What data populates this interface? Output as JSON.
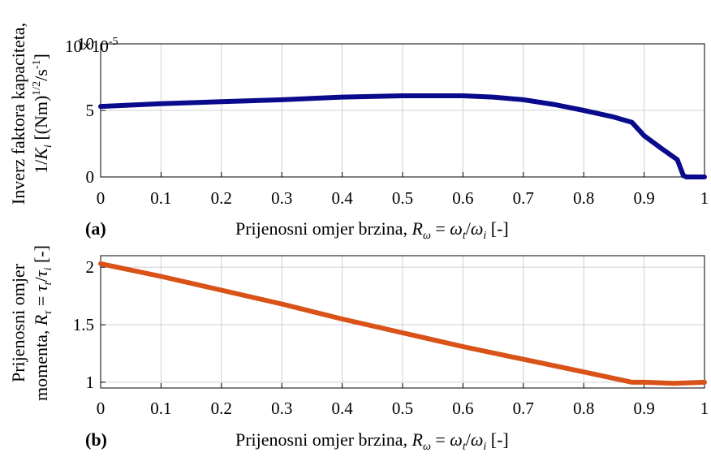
{
  "chart_data": [
    {
      "type": "line",
      "panel_label": "(a)",
      "xlabel_prefix": "Prijenosni omjer brzina, ",
      "xlabel_math": "R",
      "xlabel_sub": "ω",
      "xlabel_eq": " = ",
      "xlabel_num": "ω",
      "xlabel_num_sub": "t",
      "xlabel_slash": "/",
      "xlabel_den": "ω",
      "xlabel_den_sub": "i",
      "xlabel_unit": " [-]",
      "ylabel_line1": "Inverz faktora kapaciteta,",
      "ylabel_line2_a": "1/",
      "ylabel_line2_k": "K",
      "ylabel_line2_ksub": "i",
      "ylabel_line2_b": " [(Nm)",
      "ylabel_line2_sup1": "1/2",
      "ylabel_line2_c": "/s",
      "ylabel_line2_sup2": "-1",
      "ylabel_line2_d": "]",
      "exponent_base": "10",
      "exponent_times": "×",
      "exponent_power": "-5",
      "xlim": [
        0,
        1
      ],
      "ylim": [
        0,
        10
      ],
      "xticks": [
        0,
        0.1,
        0.2,
        0.3,
        0.4,
        0.5,
        0.6,
        0.7,
        0.8,
        0.9,
        1
      ],
      "xtick_labels": [
        "0",
        "0.1",
        "0.2",
        "0.3",
        "0.4",
        "0.5",
        "0.6",
        "0.7",
        "0.8",
        "0.9",
        "1"
      ],
      "yticks": [
        0,
        5,
        10
      ],
      "ytick_labels": [
        "0",
        "5",
        "10"
      ],
      "grid": true,
      "series": [
        {
          "color": "#0a0a8c",
          "x": [
            0,
            0.1,
            0.2,
            0.3,
            0.4,
            0.5,
            0.6,
            0.65,
            0.7,
            0.75,
            0.8,
            0.85,
            0.88,
            0.9,
            0.93,
            0.955,
            0.965,
            0.97,
            1.0
          ],
          "y": [
            5.3,
            5.5,
            5.65,
            5.8,
            6.0,
            6.1,
            6.1,
            6.0,
            5.8,
            5.45,
            5.0,
            4.5,
            4.1,
            3.1,
            2.1,
            1.3,
            0.1,
            0.0,
            0.0
          ]
        }
      ]
    },
    {
      "type": "line",
      "panel_label": "(b)",
      "xlabel_prefix": "Prijenosni omjer brzina, ",
      "xlabel_math": "R",
      "xlabel_sub": "ω",
      "xlabel_eq": " = ",
      "xlabel_num": "ω",
      "xlabel_num_sub": "t",
      "xlabel_slash": "/",
      "xlabel_den": "ω",
      "xlabel_den_sub": "i",
      "xlabel_unit": " [-]",
      "ylabel_line1": "Prijenosni omjer",
      "ylabel_line2_a": "momenta, ",
      "ylabel_line2_r": "R",
      "ylabel_line2_rsub": "τ",
      "ylabel_line2_eq": " = ",
      "ylabel_line2_num": "τ",
      "ylabel_line2_numsub": "t",
      "ylabel_line2_slash": "/",
      "ylabel_line2_den": "τ",
      "ylabel_line2_densub": "i",
      "ylabel_line2_unit": " [-]",
      "xlim": [
        0,
        1
      ],
      "ylim": [
        0.95,
        2.1
      ],
      "xticks": [
        0,
        0.1,
        0.2,
        0.3,
        0.4,
        0.5,
        0.6,
        0.7,
        0.8,
        0.9,
        1
      ],
      "xtick_labels": [
        "0",
        "0.1",
        "0.2",
        "0.3",
        "0.4",
        "0.5",
        "0.6",
        "0.7",
        "0.8",
        "0.9",
        "1"
      ],
      "yticks": [
        1,
        1.5,
        2
      ],
      "ytick_labels": [
        "1",
        "1.5",
        "2"
      ],
      "grid": true,
      "series": [
        {
          "color": "#d95319",
          "x": [
            0,
            0.1,
            0.2,
            0.3,
            0.4,
            0.5,
            0.6,
            0.7,
            0.8,
            0.88,
            0.9,
            0.95,
            1.0
          ],
          "y": [
            2.03,
            1.92,
            1.8,
            1.68,
            1.55,
            1.43,
            1.31,
            1.2,
            1.09,
            1.0,
            1.0,
            0.99,
            1.0
          ]
        }
      ]
    }
  ]
}
